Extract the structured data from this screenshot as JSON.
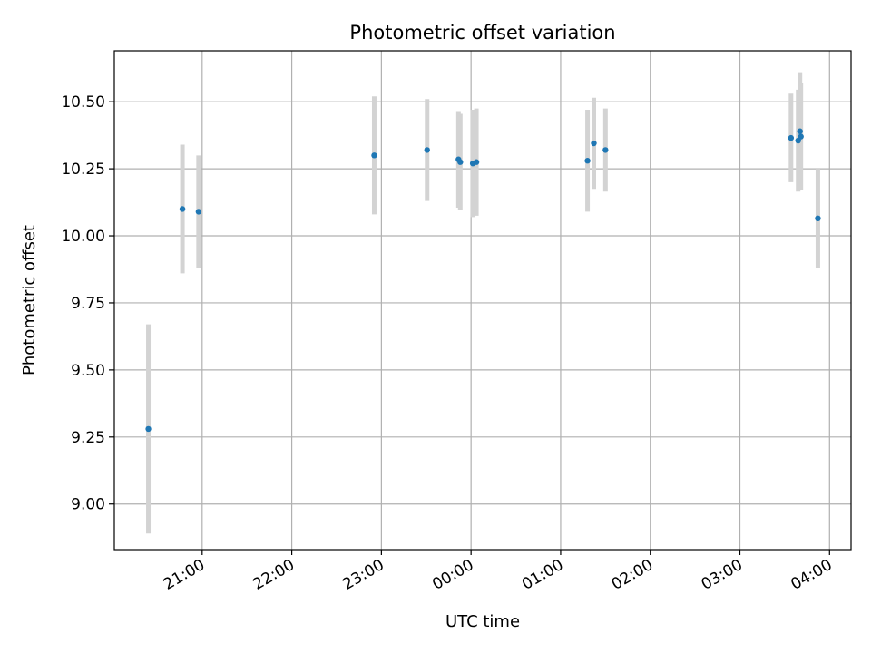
{
  "chart_data": {
    "type": "scatter",
    "title": "Photometric offset variation",
    "xlabel": "UTC time",
    "ylabel": "Photometric offset",
    "x_unit": "hours",
    "xlim": [
      20.02,
      28.24
    ],
    "ylim": [
      8.83,
      10.69
    ],
    "x_ticks": [
      {
        "value": 21,
        "label": "21:00"
      },
      {
        "value": 22,
        "label": "22:00"
      },
      {
        "value": 23,
        "label": "23:00"
      },
      {
        "value": 24,
        "label": "00:00"
      },
      {
        "value": 25,
        "label": "01:00"
      },
      {
        "value": 26,
        "label": "02:00"
      },
      {
        "value": 27,
        "label": "03:00"
      },
      {
        "value": 28,
        "label": "04:00"
      }
    ],
    "y_ticks": [
      {
        "value": 9.0,
        "label": "9.00"
      },
      {
        "value": 9.25,
        "label": "9.25"
      },
      {
        "value": 9.5,
        "label": "9.50"
      },
      {
        "value": 9.75,
        "label": "9.75"
      },
      {
        "value": 10.0,
        "label": "10.00"
      },
      {
        "value": 10.25,
        "label": "10.25"
      },
      {
        "value": 10.5,
        "label": "10.50"
      }
    ],
    "grid": true,
    "colors": {
      "point": "#1f77b4",
      "errorbar": "#d3d3d3",
      "grid": "#b0b0b0"
    },
    "points": [
      {
        "x": 20.4,
        "y": 9.28,
        "err": 0.39
      },
      {
        "x": 20.78,
        "y": 10.1,
        "err": 0.24
      },
      {
        "x": 20.96,
        "y": 10.09,
        "err": 0.21
      },
      {
        "x": 22.92,
        "y": 10.3,
        "err": 0.22
      },
      {
        "x": 23.51,
        "y": 10.32,
        "err": 0.19
      },
      {
        "x": 23.86,
        "y": 10.285,
        "err": 0.18
      },
      {
        "x": 23.88,
        "y": 10.275,
        "err": 0.18
      },
      {
        "x": 24.02,
        "y": 10.27,
        "err": 0.2
      },
      {
        "x": 24.06,
        "y": 10.275,
        "err": 0.2
      },
      {
        "x": 25.3,
        "y": 10.28,
        "err": 0.19
      },
      {
        "x": 25.37,
        "y": 10.345,
        "err": 0.17
      },
      {
        "x": 25.5,
        "y": 10.32,
        "err": 0.155
      },
      {
        "x": 27.57,
        "y": 10.365,
        "err": 0.165
      },
      {
        "x": 27.65,
        "y": 10.355,
        "err": 0.19
      },
      {
        "x": 27.67,
        "y": 10.39,
        "err": 0.22
      },
      {
        "x": 27.68,
        "y": 10.37,
        "err": 0.2
      },
      {
        "x": 27.87,
        "y": 10.065,
        "err": 0.185
      }
    ]
  }
}
